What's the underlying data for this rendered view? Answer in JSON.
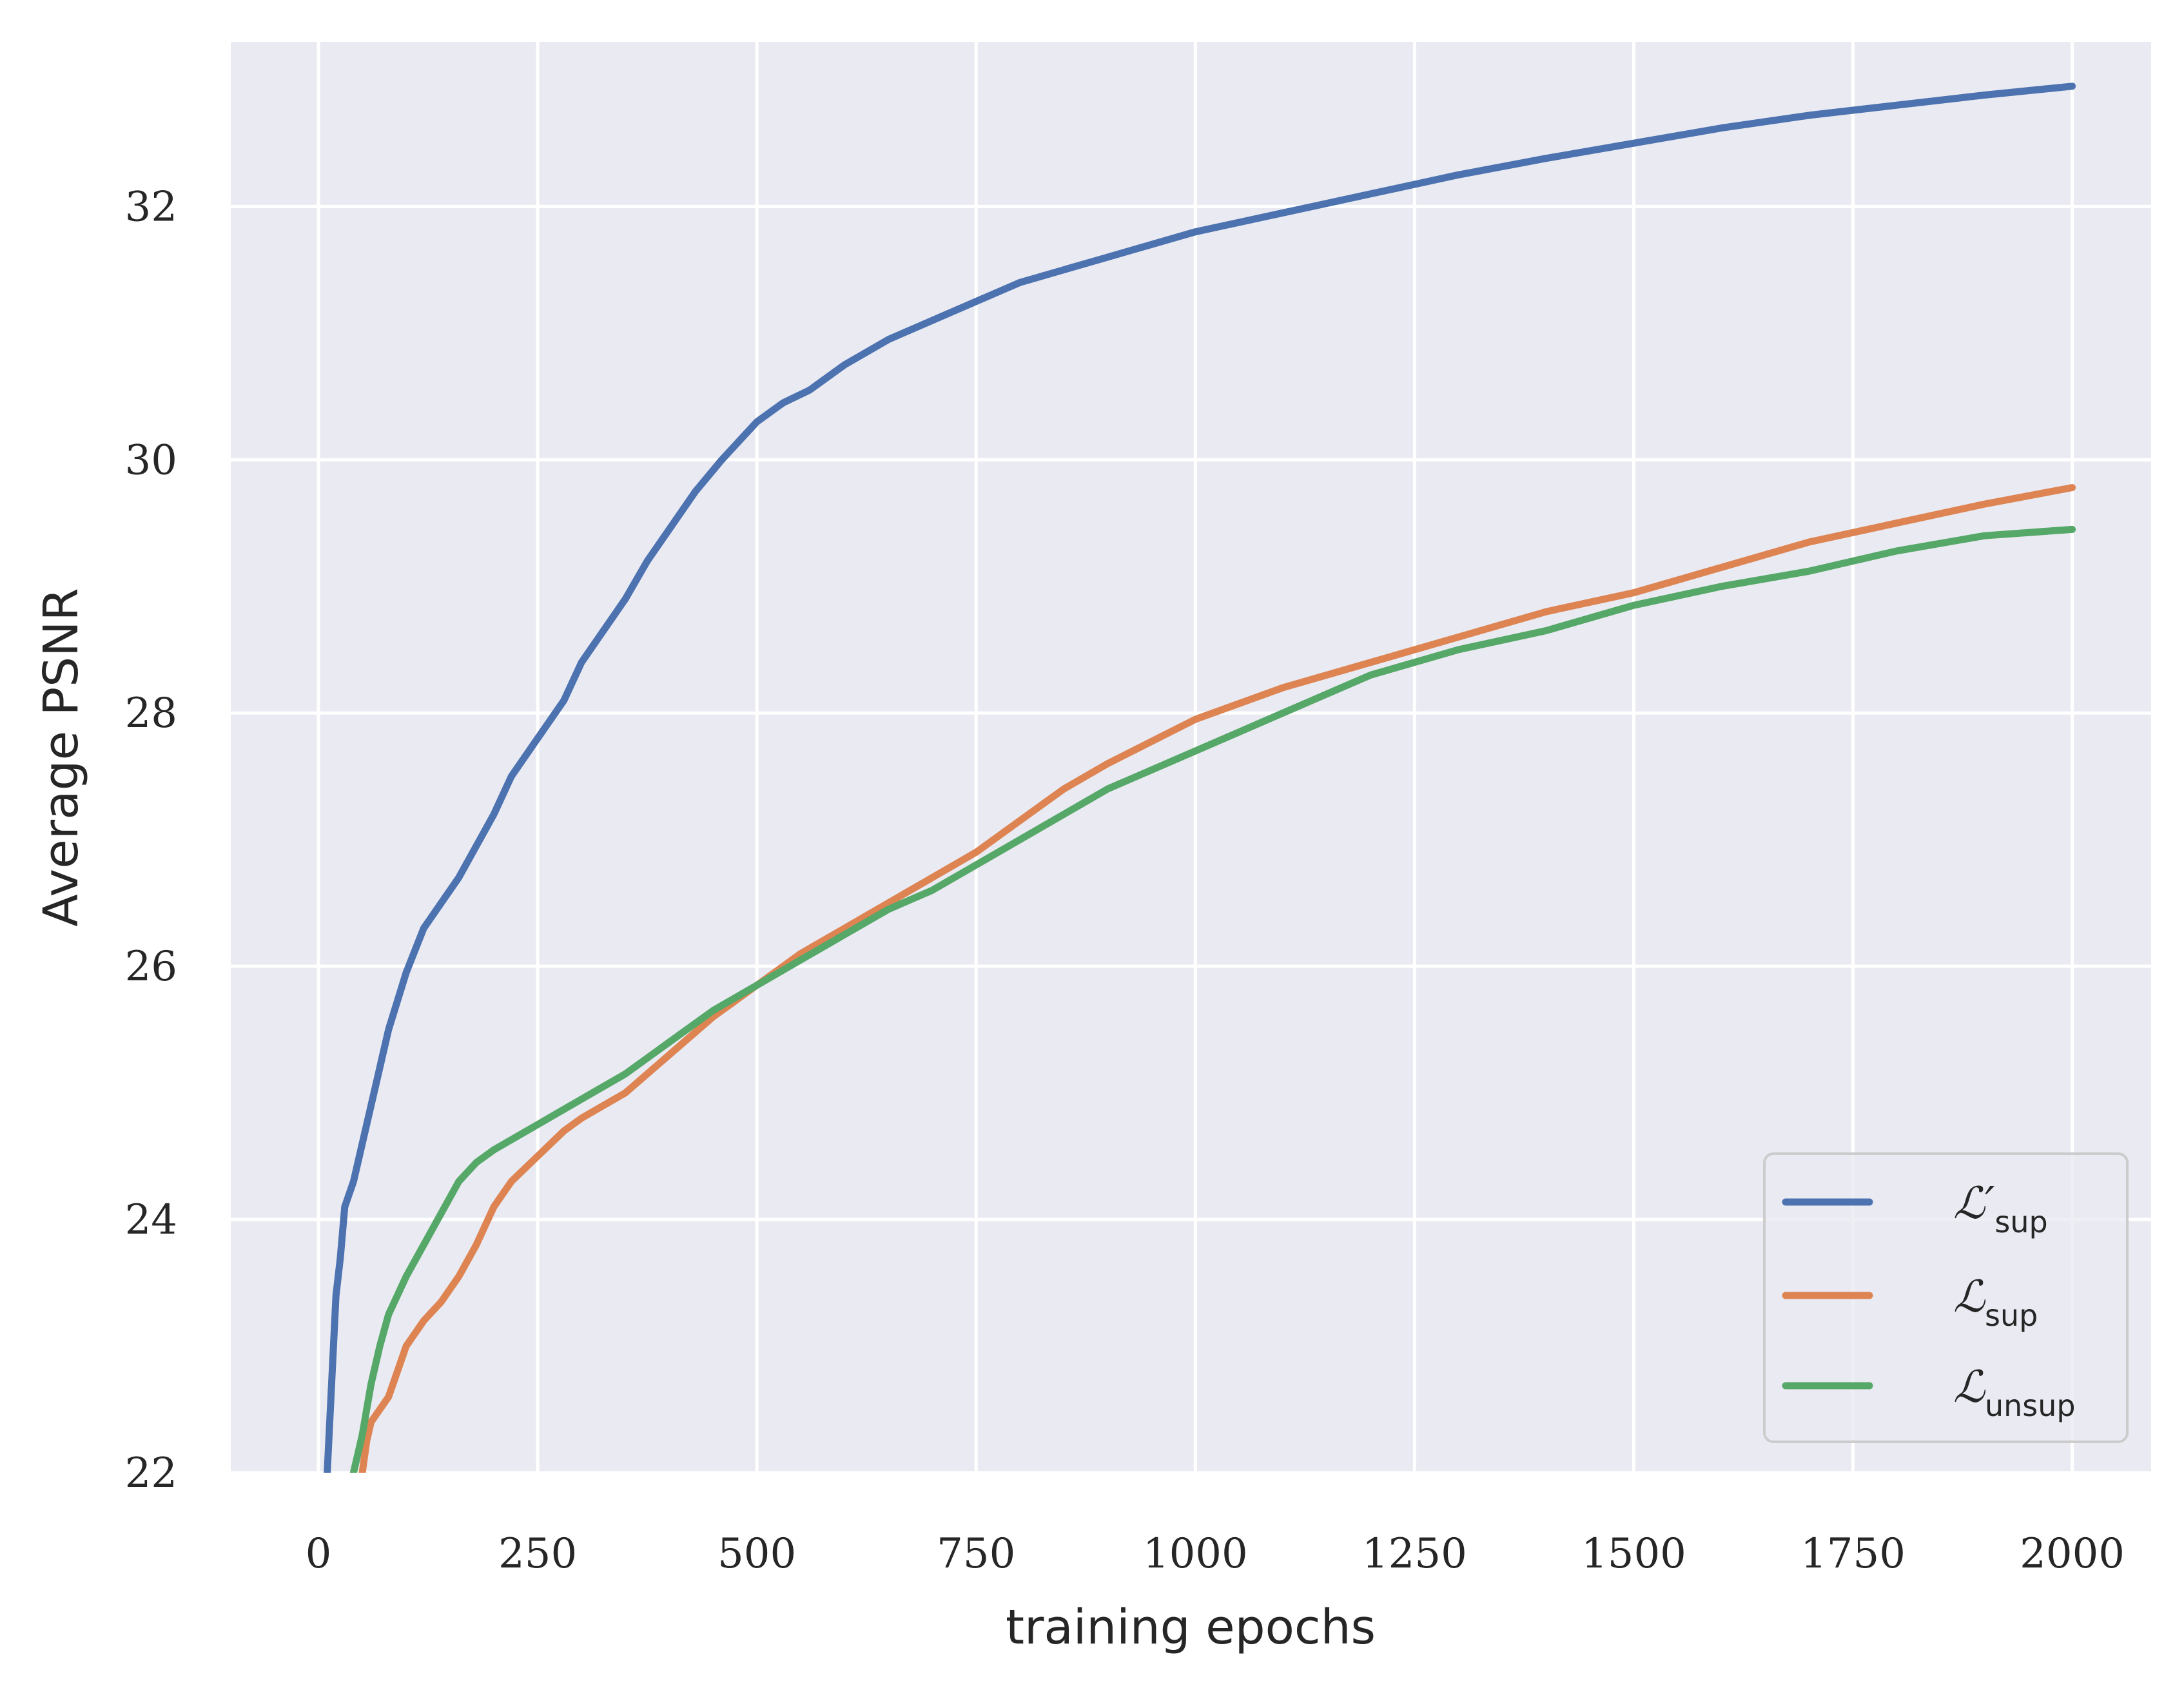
{
  "chart_data": {
    "type": "line",
    "xlabel": "training epochs",
    "ylabel": "Average PSNR",
    "xlim": [
      -100,
      2090
    ],
    "ylim": [
      22,
      33.3
    ],
    "xticks": [
      0,
      250,
      500,
      750,
      1000,
      1250,
      1500,
      1750,
      2000
    ],
    "xtick_labels": [
      "0",
      "250",
      "500",
      "750",
      "1000",
      "1250",
      "1500",
      "1750",
      "2000"
    ],
    "yticks": [
      22,
      24,
      26,
      28,
      30,
      32
    ],
    "ytick_labels": [
      "22",
      "24",
      "26",
      "28",
      "30",
      "32"
    ],
    "grid": true,
    "legend_position": "lower-right",
    "series": [
      {
        "name": "L'_sup",
        "legend_main": "ℒ′",
        "legend_sub": "sup",
        "color": "#4c72b0",
        "x": [
          10,
          20,
          25,
          30,
          40,
          50,
          60,
          70,
          80,
          100,
          120,
          140,
          160,
          180,
          200,
          220,
          250,
          280,
          300,
          320,
          350,
          375,
          400,
          430,
          460,
          500,
          530,
          560,
          600,
          650,
          700,
          750,
          800,
          850,
          900,
          1000,
          1100,
          1200,
          1300,
          1400,
          1500,
          1600,
          1700,
          1800,
          1900,
          2000
        ],
        "y": [
          22.0,
          23.4,
          23.7,
          24.1,
          24.3,
          24.6,
          24.9,
          25.2,
          25.5,
          25.95,
          26.3,
          26.5,
          26.7,
          26.95,
          27.2,
          27.5,
          27.8,
          28.1,
          28.4,
          28.6,
          28.9,
          29.2,
          29.45,
          29.75,
          30.0,
          30.3,
          30.45,
          30.55,
          30.75,
          30.95,
          31.1,
          31.25,
          31.4,
          31.5,
          31.6,
          31.8,
          31.95,
          32.1,
          32.25,
          32.38,
          32.5,
          32.62,
          32.72,
          32.8,
          32.88,
          32.95
        ]
      },
      {
        "name": "L_sup",
        "legend_main": "ℒ",
        "legend_sub": "sup",
        "color": "#dd8452",
        "x": [
          50,
          55,
          60,
          70,
          80,
          90,
          100,
          110,
          120,
          140,
          160,
          180,
          200,
          220,
          250,
          280,
          300,
          350,
          400,
          450,
          500,
          550,
          600,
          650,
          700,
          750,
          800,
          850,
          900,
          1000,
          1100,
          1200,
          1300,
          1400,
          1500,
          1600,
          1700,
          1800,
          1900,
          2000
        ],
        "y": [
          22.0,
          22.25,
          22.4,
          22.5,
          22.6,
          22.8,
          23.0,
          23.1,
          23.2,
          23.35,
          23.55,
          23.8,
          24.1,
          24.3,
          24.5,
          24.7,
          24.8,
          25.0,
          25.3,
          25.6,
          25.85,
          26.1,
          26.3,
          26.5,
          26.7,
          26.9,
          27.15,
          27.4,
          27.6,
          27.95,
          28.2,
          28.4,
          28.6,
          28.8,
          28.95,
          29.15,
          29.35,
          29.5,
          29.65,
          29.78
        ]
      },
      {
        "name": "L_unsup",
        "legend_main": "ℒ",
        "legend_sub": "unsup",
        "color": "#55a868",
        "x": [
          40,
          50,
          60,
          70,
          80,
          100,
          120,
          140,
          160,
          180,
          200,
          250,
          300,
          350,
          400,
          450,
          500,
          550,
          600,
          650,
          700,
          750,
          800,
          850,
          900,
          1000,
          1100,
          1200,
          1300,
          1400,
          1500,
          1600,
          1700,
          1800,
          1900,
          2000
        ],
        "y": [
          22.0,
          22.3,
          22.7,
          23.0,
          23.25,
          23.55,
          23.8,
          24.05,
          24.3,
          24.45,
          24.55,
          24.75,
          24.95,
          25.15,
          25.4,
          25.65,
          25.85,
          26.05,
          26.25,
          26.45,
          26.6,
          26.8,
          27.0,
          27.2,
          27.4,
          27.7,
          28.0,
          28.3,
          28.5,
          28.65,
          28.85,
          29.0,
          29.12,
          29.28,
          29.4,
          29.45
        ]
      }
    ]
  }
}
